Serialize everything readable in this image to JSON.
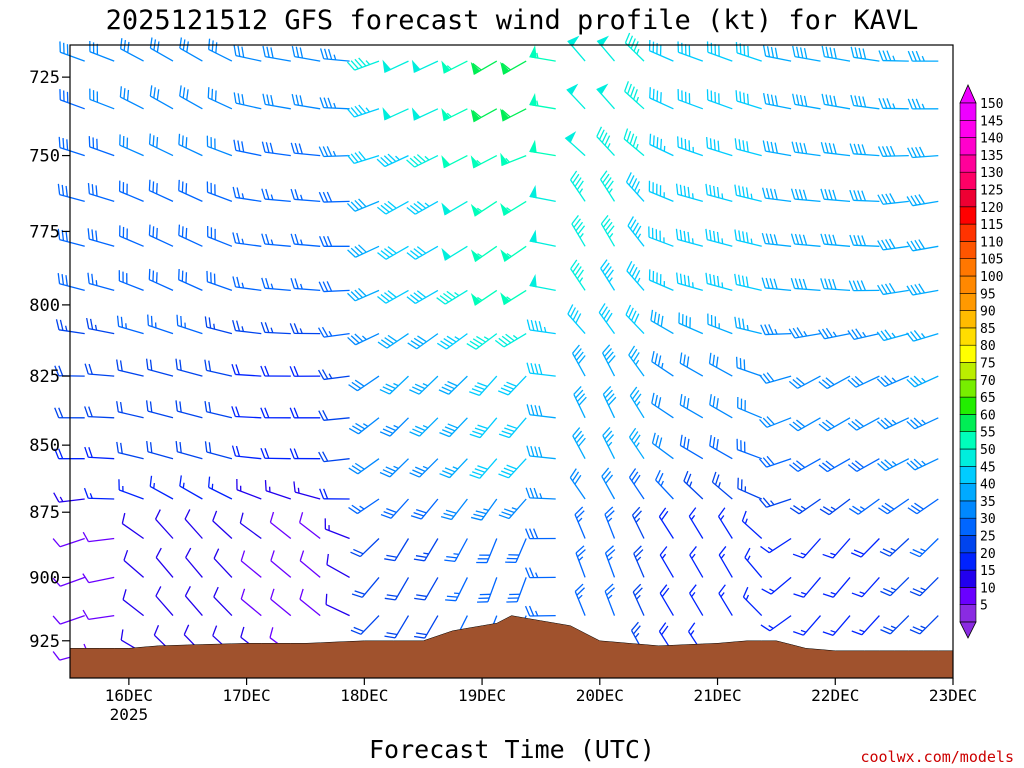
{
  "chart_data": {
    "type": "wind-barb",
    "title": "2025121512 GFS forecast wind profile (kt) for KAVL",
    "xlabel": "Forecast Time (UTC)",
    "credit": "coolwx.com/models",
    "xlim": [
      "2025-12-15 12",
      "2025-12-23 00"
    ],
    "x_ticks": [
      {
        "label": "16DEC",
        "sub": "2025",
        "value": "2025-12-16 00"
      },
      {
        "label": "17DEC",
        "sub": "",
        "value": "2025-12-17 00"
      },
      {
        "label": "18DEC",
        "sub": "",
        "value": "2025-12-18 00"
      },
      {
        "label": "19DEC",
        "sub": "",
        "value": "2025-12-19 00"
      },
      {
        "label": "20DEC",
        "sub": "",
        "value": "2025-12-20 00"
      },
      {
        "label": "21DEC",
        "sub": "",
        "value": "2025-12-21 00"
      },
      {
        "label": "22DEC",
        "sub": "",
        "value": "2025-12-22 00"
      },
      {
        "label": "23DEC",
        "sub": "",
        "value": "2025-12-23 00"
      }
    ],
    "y_axis": {
      "label": "",
      "scale": "pressure (hPa), decreasing upward",
      "ylim": [
        940,
        715
      ],
      "ticks": [
        725,
        750,
        775,
        800,
        825,
        850,
        875,
        900,
        925
      ]
    },
    "colorbar": {
      "labels": [
        5,
        10,
        15,
        20,
        25,
        30,
        35,
        40,
        45,
        50,
        55,
        60,
        65,
        70,
        75,
        80,
        85,
        90,
        95,
        100,
        105,
        110,
        115,
        120,
        125,
        130,
        135,
        140,
        145,
        150
      ],
      "colors": [
        "#8a2be2",
        "#6a00ff",
        "#2200ee",
        "#0022ff",
        "#0044ee",
        "#0066ff",
        "#0088ff",
        "#00aaff",
        "#00ccff",
        "#00eedd",
        "#00ffbb",
        "#00ee55",
        "#22ee00",
        "#77ee00",
        "#bbee00",
        "#ffff00",
        "#ffdd00",
        "#ffbb00",
        "#ff9900",
        "#ff8800",
        "#ff7700",
        "#ff5500",
        "#ff3300",
        "#ff0000",
        "#ee0033",
        "#ff0066",
        "#ff0099",
        "#ff00cc",
        "#ff00ee",
        "#ee00ff"
      ]
    },
    "terrain_color": "#a0522d",
    "terrain": [
      {
        "t": "2025-12-15 12",
        "p": 928
      },
      {
        "t": "2025-12-16 00",
        "p": 928
      },
      {
        "t": "2025-12-16 06",
        "p": 927
      },
      {
        "t": "2025-12-17 00",
        "p": 926
      },
      {
        "t": "2025-12-17 12",
        "p": 926
      },
      {
        "t": "2025-12-18 00",
        "p": 925
      },
      {
        "t": "2025-12-18 12",
        "p": 925
      },
      {
        "t": "2025-12-18 18",
        "p": 921
      },
      {
        "t": "2025-12-19 03",
        "p": 918
      },
      {
        "t": "2025-12-19 06",
        "p": 915
      },
      {
        "t": "2025-12-19 12",
        "p": 917
      },
      {
        "t": "2025-12-19 18",
        "p": 919
      },
      {
        "t": "2025-12-20 00",
        "p": 925
      },
      {
        "t": "2025-12-20 12",
        "p": 927
      },
      {
        "t": "2025-12-21 00",
        "p": 926
      },
      {
        "t": "2025-12-21 06",
        "p": 925
      },
      {
        "t": "2025-12-21 12",
        "p": 925
      },
      {
        "t": "2025-12-21 18",
        "p": 928
      },
      {
        "t": "2025-12-22 00",
        "p": 929
      },
      {
        "t": "2025-12-22 12",
        "p": 929
      },
      {
        "t": "2025-12-23 00",
        "p": 929
      }
    ],
    "barb_levels": [
      720,
      735,
      750,
      765,
      780,
      795,
      810,
      825,
      840,
      855,
      870,
      885,
      900,
      915,
      930
    ],
    "barb_samples": [
      {
        "t": "2025-12-15 12",
        "p": 720,
        "dir": 290,
        "kt": 30
      },
      {
        "t": "2025-12-15 12",
        "p": 780,
        "dir": 285,
        "kt": 28
      },
      {
        "t": "2025-12-15 12",
        "p": 840,
        "dir": 270,
        "kt": 20
      },
      {
        "t": "2025-12-15 12",
        "p": 900,
        "dir": 250,
        "kt": 8
      },
      {
        "t": "2025-12-16 12",
        "p": 720,
        "dir": 300,
        "kt": 32
      },
      {
        "t": "2025-12-16 12",
        "p": 780,
        "dir": 295,
        "kt": 30
      },
      {
        "t": "2025-12-16 12",
        "p": 840,
        "dir": 285,
        "kt": 22
      },
      {
        "t": "2025-12-16 12",
        "p": 900,
        "dir": 320,
        "kt": 10
      },
      {
        "t": "2025-12-17 12",
        "p": 720,
        "dir": 280,
        "kt": 32
      },
      {
        "t": "2025-12-17 12",
        "p": 780,
        "dir": 275,
        "kt": 25
      },
      {
        "t": "2025-12-17 12",
        "p": 840,
        "dir": 270,
        "kt": 18
      },
      {
        "t": "2025-12-17 12",
        "p": 900,
        "dir": 310,
        "kt": 8
      },
      {
        "t": "2025-12-18 12",
        "p": 720,
        "dir": 245,
        "kt": 48
      },
      {
        "t": "2025-12-18 12",
        "p": 780,
        "dir": 240,
        "kt": 42
      },
      {
        "t": "2025-12-18 12",
        "p": 840,
        "dir": 225,
        "kt": 35
      },
      {
        "t": "2025-12-18 12",
        "p": 900,
        "dir": 210,
        "kt": 22
      },
      {
        "t": "2025-12-19 06",
        "p": 720,
        "dir": 240,
        "kt": 60
      },
      {
        "t": "2025-12-19 06",
        "p": 780,
        "dir": 235,
        "kt": 55
      },
      {
        "t": "2025-12-19 06",
        "p": 840,
        "dir": 220,
        "kt": 42
      },
      {
        "t": "2025-12-19 06",
        "p": 900,
        "dir": 200,
        "kt": 28
      },
      {
        "t": "2025-12-20 00",
        "p": 720,
        "dir": 320,
        "kt": 48
      },
      {
        "t": "2025-12-20 00",
        "p": 780,
        "dir": 330,
        "kt": 45
      },
      {
        "t": "2025-12-20 00",
        "p": 840,
        "dir": 335,
        "kt": 38
      },
      {
        "t": "2025-12-20 00",
        "p": 900,
        "dir": 340,
        "kt": 25
      },
      {
        "t": "2025-12-21 00",
        "p": 720,
        "dir": 290,
        "kt": 40
      },
      {
        "t": "2025-12-21 00",
        "p": 780,
        "dir": 285,
        "kt": 45
      },
      {
        "t": "2025-12-21 00",
        "p": 840,
        "dir": 300,
        "kt": 30
      },
      {
        "t": "2025-12-21 00",
        "p": 900,
        "dir": 330,
        "kt": 15
      },
      {
        "t": "2025-12-22 00",
        "p": 720,
        "dir": 280,
        "kt": 40
      },
      {
        "t": "2025-12-22 00",
        "p": 780,
        "dir": 275,
        "kt": 38
      },
      {
        "t": "2025-12-22 00",
        "p": 840,
        "dir": 240,
        "kt": 30
      },
      {
        "t": "2025-12-22 00",
        "p": 900,
        "dir": 220,
        "kt": 15
      },
      {
        "t": "2025-12-23 00",
        "p": 720,
        "dir": 270,
        "kt": 35
      },
      {
        "t": "2025-12-23 00",
        "p": 780,
        "dir": 260,
        "kt": 40
      },
      {
        "t": "2025-12-23 00",
        "p": 840,
        "dir": 245,
        "kt": 35
      },
      {
        "t": "2025-12-23 00",
        "p": 900,
        "dir": 225,
        "kt": 25
      }
    ]
  }
}
